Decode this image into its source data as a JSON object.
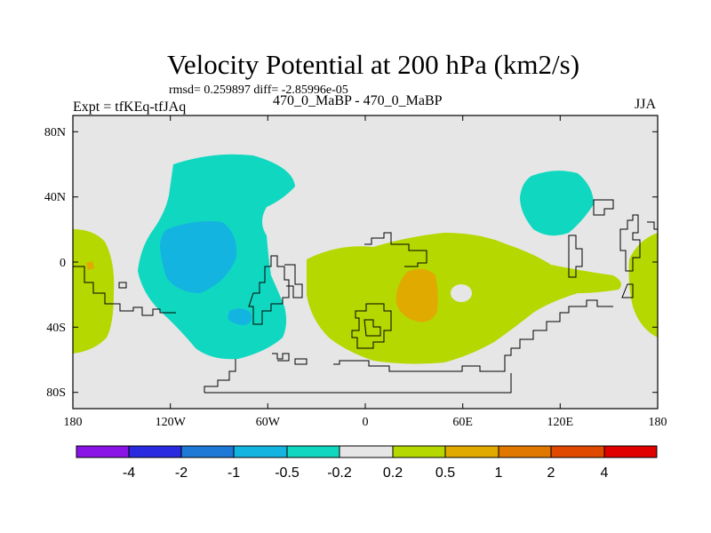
{
  "header": {
    "title": "Velocity Potential at 200 hPa (km2/s)",
    "stats_line": "rmsd= 0.259897 diff= -2.85996e-05",
    "left_label": "Expt = tfKEq-tfJAq",
    "center_label": "470_0_MaBP - 470_0_MaBP",
    "right_label": "JJA"
  },
  "map": {
    "background_color": "#e6e6e6",
    "longitude_ticks": [
      "180",
      "120W",
      "60W",
      "0",
      "60E",
      "120E",
      "180"
    ],
    "latitude_ticks": [
      "80N",
      "40N",
      "0",
      "40S",
      "80S"
    ],
    "longitude_range": [
      -180,
      180
    ],
    "latitude_range": [
      -90,
      90
    ]
  },
  "colorbar": {
    "labels": [
      "-4",
      "-2",
      "-1",
      "-0.5",
      "-0.2",
      "0.2",
      "0.5",
      "1",
      "2",
      "4"
    ],
    "colors": [
      "#8a14e6",
      "#2a2ae0",
      "#1e78d6",
      "#14b4e0",
      "#10d8c0",
      "#e6e6e6",
      "#b4d800",
      "#e0aa00",
      "#e07800",
      "#e04a00",
      "#e00000"
    ]
  }
}
